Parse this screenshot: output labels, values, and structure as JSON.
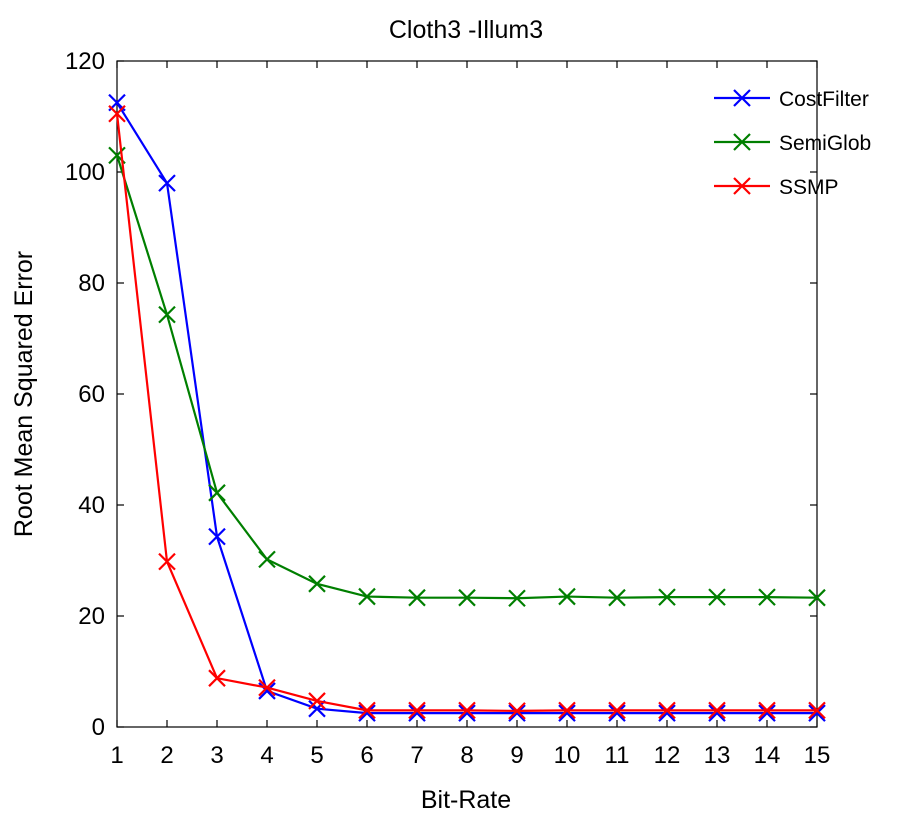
{
  "chart_data": {
    "type": "line",
    "title": "Cloth3 -Illum3",
    "xlabel": "Bit-Rate",
    "ylabel": "Root Mean Squared Error",
    "xlim": [
      1,
      15
    ],
    "ylim": [
      0,
      120
    ],
    "xticks": [
      1,
      2,
      3,
      4,
      5,
      6,
      7,
      8,
      9,
      10,
      11,
      12,
      13,
      14,
      15
    ],
    "yticks": [
      0,
      20,
      40,
      60,
      80,
      100,
      120
    ],
    "grid": false,
    "legend_position": "top-right",
    "x": [
      1,
      2,
      3,
      4,
      5,
      6,
      7,
      8,
      9,
      10,
      11,
      12,
      13,
      14,
      15
    ],
    "series": [
      {
        "name": "CostFilter",
        "color": "#0000ff",
        "marker": "x",
        "values": [
          112.5,
          98,
          34.3,
          6.5,
          3.3,
          2.5,
          2.5,
          2.5,
          2.5,
          2.5,
          2.5,
          2.5,
          2.5,
          2.5,
          2.5
        ]
      },
      {
        "name": "SemiGlob",
        "color": "#007f00",
        "marker": "x",
        "values": [
          103,
          74.3,
          42.2,
          30.2,
          25.8,
          23.5,
          23.3,
          23.3,
          23.2,
          23.5,
          23.3,
          23.4,
          23.4,
          23.4,
          23.3
        ]
      },
      {
        "name": "SSMP",
        "color": "#ff0000",
        "marker": "x",
        "values": [
          110.5,
          29.8,
          8.8,
          7.1,
          4.7,
          3,
          3,
          3,
          2.9,
          3,
          3,
          3,
          3,
          3,
          3
        ]
      }
    ]
  }
}
